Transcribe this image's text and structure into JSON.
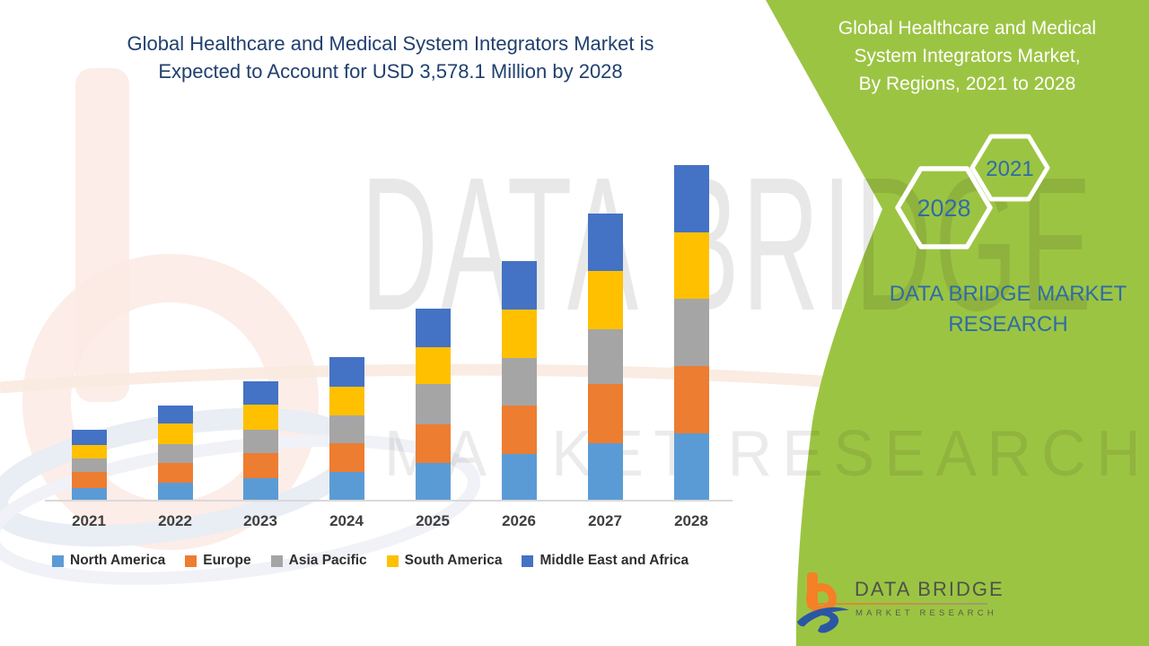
{
  "header": {
    "title_line1": "Global Healthcare and Medical System Integrators Market is",
    "title_line2": "Expected to Account for USD 3,578.1 Million by 2028"
  },
  "side_panel": {
    "bg_color": "#9CC443",
    "title_line1": "Global Healthcare and Medical",
    "title_line2": "System Integrators Market,",
    "title_line3": "By Regions, 2021 to 2028",
    "hex_year_small": "2021",
    "hex_year_large": "2028",
    "brand_line1": "DATA BRIDGE MARKET",
    "brand_line2": "RESEARCH",
    "accent_text_color": "#2E6DA4"
  },
  "watermark": {
    "line1": "DATA BRIDGE",
    "line2": "MARKET RESEARCH"
  },
  "footer_logo": {
    "name": "DATA BRIDGE",
    "tagline": "MARKET RESEARCH",
    "orange": "#F58025",
    "blue": "#2B56A4"
  },
  "chart_data": {
    "type": "bar",
    "stacked": true,
    "title": "Global Healthcare and Medical System Integrators Market, By Regions, 2021 to 2028",
    "annotation": "Expected to account for USD 3,578.1 Million by 2028",
    "unit": "USD Million",
    "categories": [
      "2021",
      "2022",
      "2023",
      "2024",
      "2025",
      "2026",
      "2027",
      "2028"
    ],
    "series": [
      {
        "name": "North America",
        "color": "#5B9BD5",
        "values": [
          134,
          191,
          242,
          306,
          402,
          500,
          612,
          718
        ]
      },
      {
        "name": "Europe",
        "color": "#ED7D31",
        "values": [
          172,
          210,
          265,
          306,
          411,
          510,
          631,
          718
        ]
      },
      {
        "name": "Asia Pacific",
        "color": "#A5A5A5",
        "values": [
          143,
          201,
          249,
          297,
          431,
          512,
          584,
          718
        ]
      },
      {
        "name": "South America",
        "color": "#FFC000",
        "values": [
          143,
          220,
          268,
          306,
          392,
          515,
          622,
          707
        ]
      },
      {
        "name": "Middle East and Africa",
        "color": "#4472C4",
        "values": [
          163,
          191,
          252,
          320,
          409,
          517,
          612,
          717.1
        ]
      }
    ],
    "totals": [
      755,
      1013,
      1276,
      1535,
      2045,
      2554,
      3061,
      3578.1
    ],
    "ylim": [
      0,
      3800
    ],
    "grid": false,
    "y_axis_shown": false,
    "legend_position": "bottom"
  }
}
